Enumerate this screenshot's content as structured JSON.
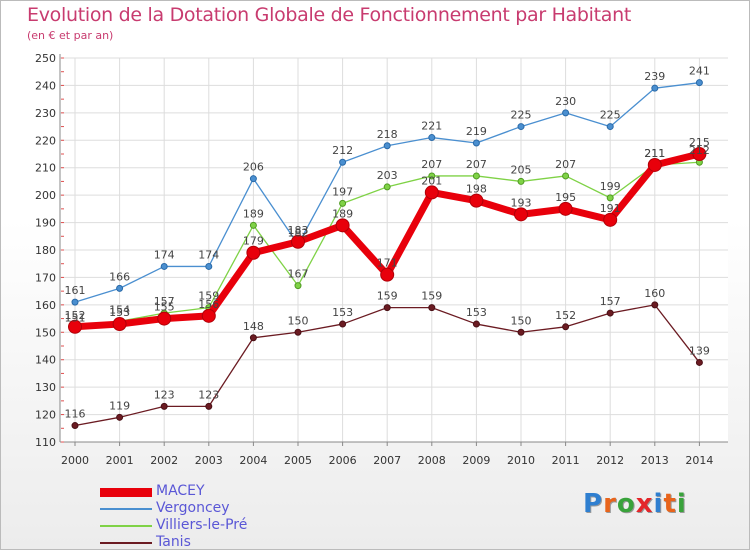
{
  "title": "Evolution de la Dotation Globale de Fonctionnement par Habitant",
  "subtitle": "(en € et par an)",
  "logo": {
    "text": "Proxiti",
    "letters": [
      "P",
      "r",
      "o",
      "x",
      "i",
      "t",
      "i"
    ],
    "colors": [
      "#2f7fd0",
      "#e8641b",
      "#39a33b",
      "#e4262a",
      "#2f7fd0",
      "#e8641b",
      "#39a33b"
    ]
  },
  "chart_data": {
    "type": "line",
    "title": "Evolution de la Dotation Globale de Fonctionnement par Habitant",
    "subtitle": "(en € et par an)",
    "xlabel": "",
    "ylabel": "",
    "x": [
      "2000",
      "2001",
      "2002",
      "2003",
      "2004",
      "2005",
      "2006",
      "2007",
      "2008",
      "2009",
      "2010",
      "2011",
      "2012",
      "2013",
      "2014"
    ],
    "ylim": [
      110,
      250
    ],
    "yticks": [
      110,
      120,
      130,
      140,
      150,
      160,
      170,
      180,
      190,
      200,
      210,
      220,
      230,
      240,
      250
    ],
    "grid": true,
    "legend_position": "bottom-left",
    "series": [
      {
        "name": "MACEY",
        "color": "#e8000b",
        "values": [
          152,
          153,
          155,
          156,
          179,
          183,
          189,
          171,
          201,
          198,
          193,
          195,
          191,
          211,
          215
        ]
      },
      {
        "name": "Vergoncey",
        "color": "#4a8fd0",
        "values": [
          161,
          166,
          174,
          174,
          206,
          182,
          212,
          218,
          221,
          219,
          225,
          230,
          225,
          239,
          241
        ]
      },
      {
        "name": "Villiers-le-Pré",
        "color": "#7fd246",
        "values": [
          151,
          154,
          157,
          159,
          189,
          167,
          197,
          203,
          207,
          207,
          205,
          207,
          199,
          211,
          212
        ]
      },
      {
        "name": "Tanis",
        "color": "#6b1b22",
        "values": [
          116,
          119,
          123,
          123,
          148,
          150,
          153,
          159,
          159,
          153,
          150,
          152,
          157,
          160,
          139
        ]
      }
    ]
  }
}
